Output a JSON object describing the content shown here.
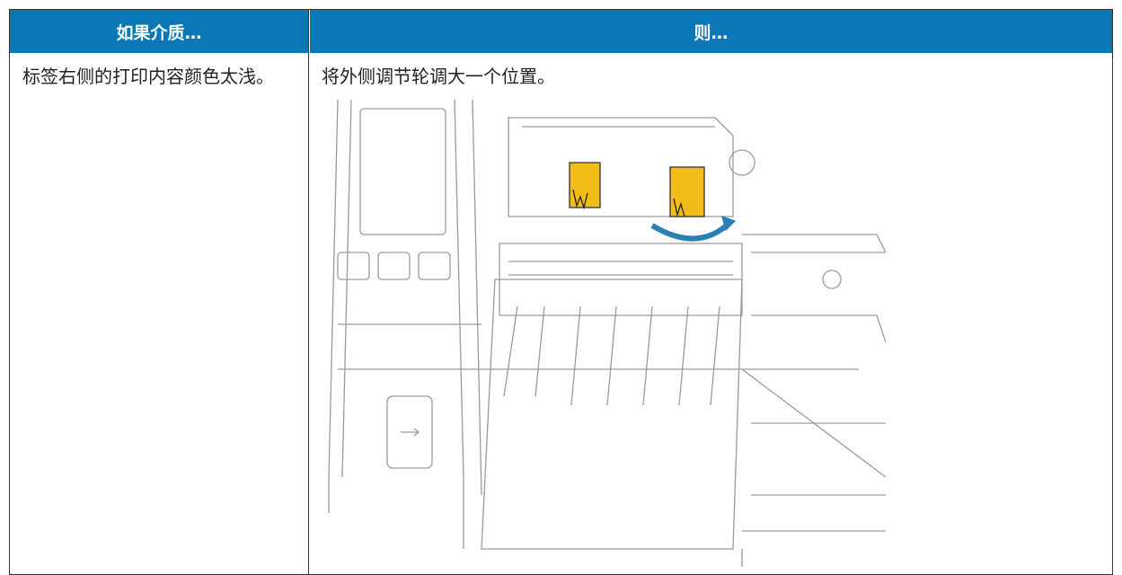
{
  "table": {
    "headers": [
      "如果介质…",
      "则…"
    ],
    "rows": [
      [
        "标签右侧的打印内容颜色太浅。",
        "将外侧调节轮调大一个位置。"
      ]
    ]
  }
}
